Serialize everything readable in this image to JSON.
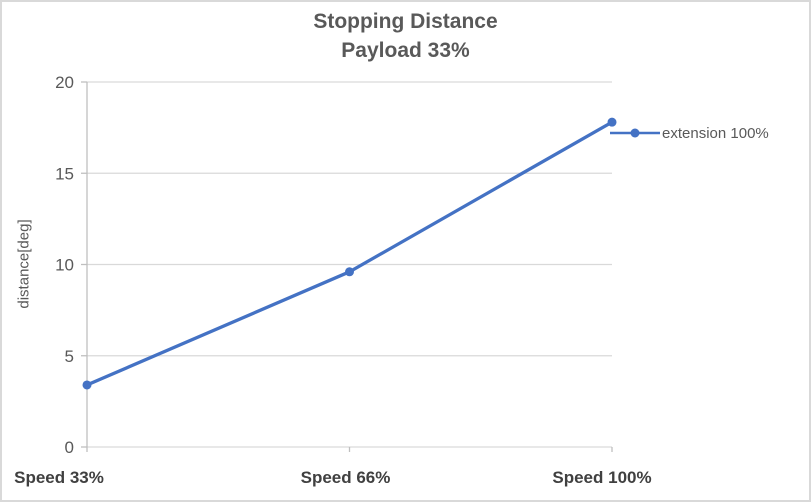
{
  "chart_data": {
    "type": "line",
    "title": "Stopping Distance",
    "subtitle": "Payload 33%",
    "categories": [
      "Speed 33%",
      "Speed 66%",
      "Speed 100%"
    ],
    "series": [
      {
        "name": "extension 100%",
        "values": [
          3.4,
          9.6,
          17.8
        ],
        "color": "#4472C4"
      }
    ],
    "xlabel": "",
    "ylabel": "distance[deg]",
    "ylim": [
      0,
      20
    ],
    "yticks": [
      0,
      5,
      10,
      15,
      20
    ],
    "grid": "horizontal",
    "legend_position": "right",
    "grid_color": "#d9d9d9",
    "axis_color": "#bfbfbf",
    "text_color": "#595959",
    "category_label_color": "#404040"
  }
}
